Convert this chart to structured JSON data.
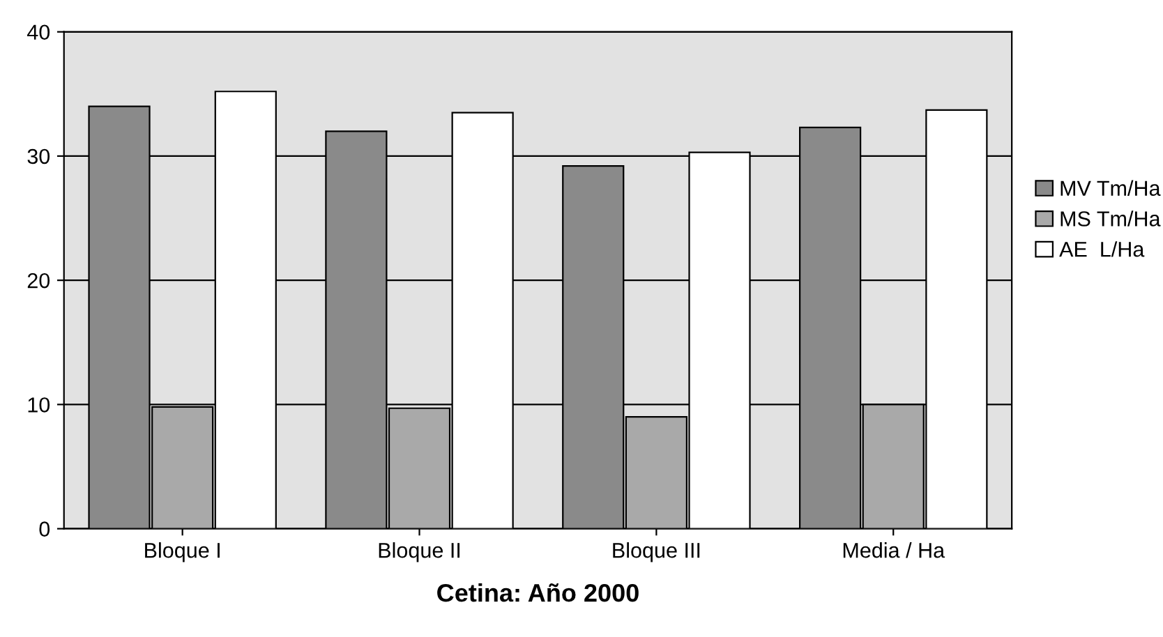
{
  "chart_data": {
    "type": "bar",
    "title": "Cetina: Año 2000",
    "categories": [
      "Bloque I",
      "Bloque II",
      "Bloque III",
      "Media / Ha"
    ],
    "series": [
      {
        "name": "MV Tm/Ha",
        "color": "#8a8a8a",
        "values": [
          34,
          32,
          29.2,
          32.3
        ]
      },
      {
        "name": "MS Tm/Ha",
        "color": "#a9a9a9",
        "values": [
          9.8,
          9.7,
          9,
          10
        ]
      },
      {
        "name": "AE  L/Ha",
        "color": "#ffffff",
        "values": [
          35.2,
          33.5,
          30.3,
          33.7
        ]
      }
    ],
    "ylim": [
      0,
      40
    ],
    "yticks": [
      0,
      10,
      20,
      30,
      40
    ],
    "grid": "y",
    "legend": "right"
  }
}
